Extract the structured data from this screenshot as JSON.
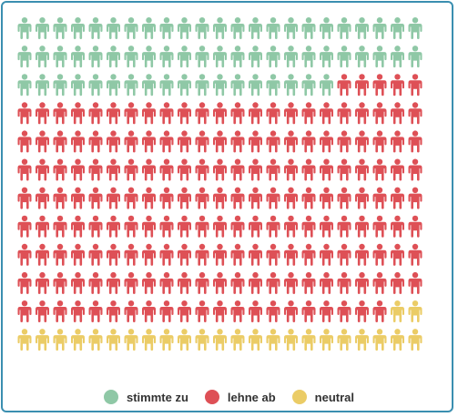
{
  "chart_data": {
    "type": "pictogram",
    "unit": "person",
    "grid": {
      "rows": 12,
      "columns": 23
    },
    "total": 276,
    "series": [
      {
        "name": "stimmte zu",
        "count": 64,
        "color": "#8fc8a6"
      },
      {
        "name": "lehne ab",
        "count": 187,
        "color": "#de5056"
      },
      {
        "name": "neutral",
        "count": 25,
        "color": "#ebcc66"
      }
    ],
    "legend_position": "bottom-center"
  },
  "legend": {
    "items": [
      {
        "label": "stimmte zu",
        "color": "#8fc8a6"
      },
      {
        "label": "lehne ab",
        "color": "#de5056"
      },
      {
        "label": "neutral",
        "color": "#ebcc66"
      }
    ]
  },
  "frame": {
    "border_color": "#3b8fb0"
  }
}
